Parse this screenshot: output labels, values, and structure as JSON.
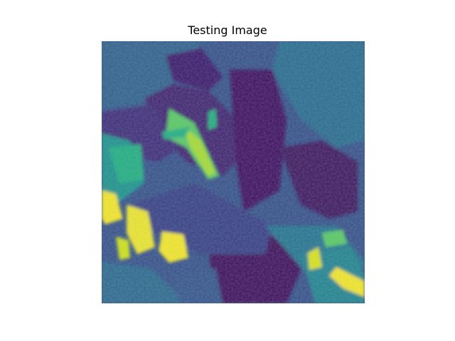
{
  "figure": {
    "title": "Testing Image"
  },
  "image": {
    "kind": "false-color raster (satellite imagery of fields)",
    "colormap": "viridis",
    "colormap_stops": [
      "#440154",
      "#472d7b",
      "#3b528b",
      "#2c728e",
      "#21918c",
      "#28ae80",
      "#5ec962",
      "#addc30",
      "#fde725"
    ],
    "axis_visible": false
  }
}
